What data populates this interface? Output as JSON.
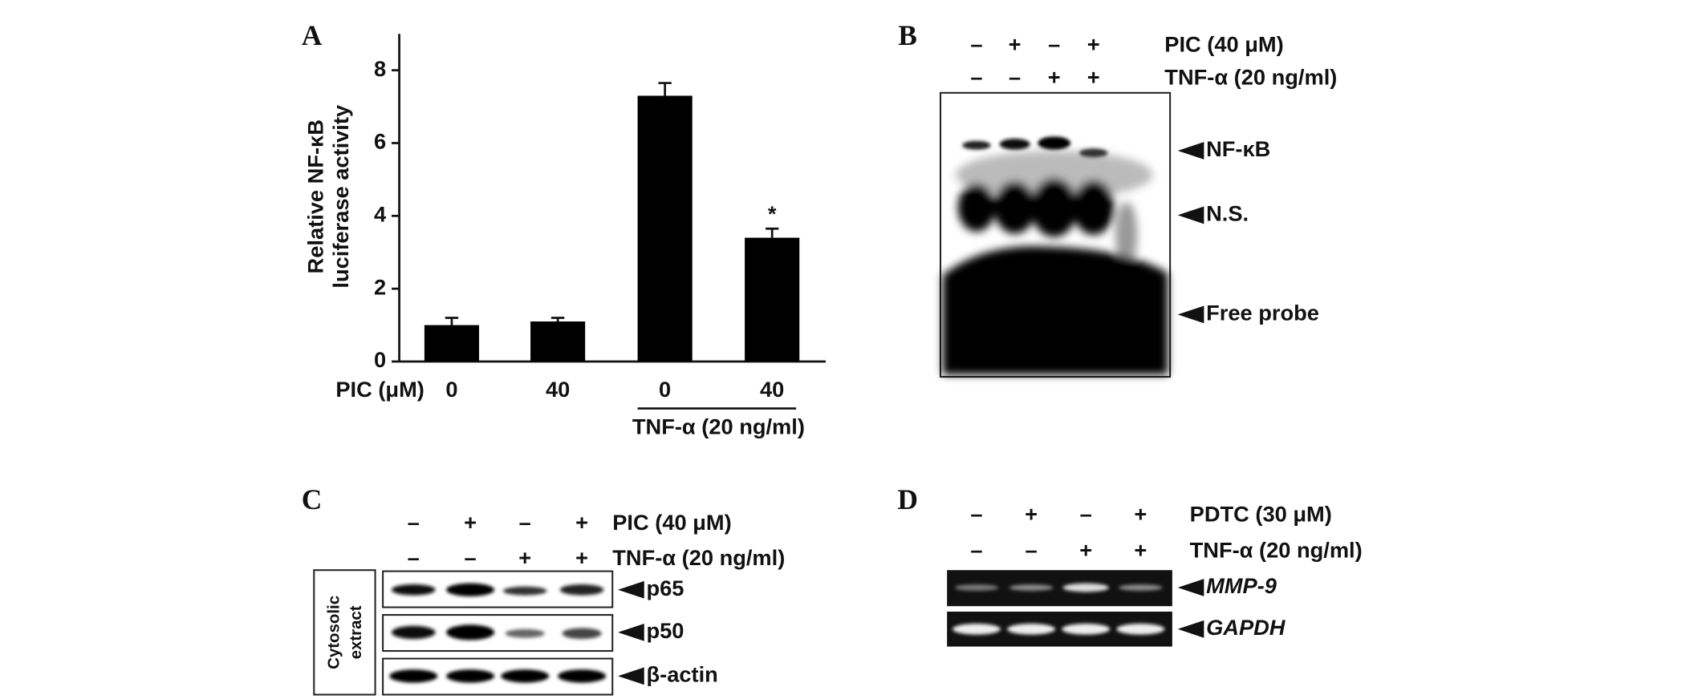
{
  "chart_data": {
    "type": "bar",
    "label": "A",
    "ylabel": [
      "Relative NF-κB",
      "luciferase activity"
    ],
    "x_row_label": "PIC (μM)",
    "categories": [
      "0",
      "40",
      "0",
      "40"
    ],
    "values": [
      1.0,
      1.1,
      7.3,
      3.4
    ],
    "errors": [
      0.2,
      0.1,
      0.35,
      0.25
    ],
    "annotations": [
      null,
      null,
      null,
      "*"
    ],
    "group_label": "TNF-α (20 ng/ml)",
    "color": "#000000",
    "ylim": [
      0,
      9
    ],
    "yticks": [
      0,
      2,
      4,
      6,
      8
    ]
  },
  "blots": [
    {
      "label": "B",
      "conditions": [
        {
          "name": "PIC (40 μM)",
          "signs": [
            "–",
            "+",
            "–",
            "+"
          ]
        },
        {
          "name": "TNF-α (20 ng/ml)",
          "signs": [
            "–",
            "–",
            "+",
            "+"
          ]
        }
      ],
      "bands": [
        "NF-κB",
        "N.S.",
        "Free probe"
      ]
    },
    {
      "label": "C",
      "conditions": [
        {
          "name": "PIC (40 μM)",
          "signs": [
            "–",
            "+",
            "–",
            "+"
          ]
        },
        {
          "name": "TNF-α (20 ng/ml)",
          "signs": [
            "–",
            "–",
            "+",
            "+"
          ]
        }
      ],
      "bands": [
        "p65",
        "p50",
        "β-actin"
      ],
      "side_label": [
        "Cytosolic",
        "extract"
      ]
    },
    {
      "label": "D",
      "conditions": [
        {
          "name": "PDTC (30 μM)",
          "signs": [
            "–",
            "+",
            "–",
            "+"
          ]
        },
        {
          "name": "TNF-α (20 ng/ml)",
          "signs": [
            "–",
            "–",
            "+",
            "+"
          ]
        }
      ],
      "bands": [
        "MMP-9",
        "GAPDH"
      ]
    }
  ]
}
